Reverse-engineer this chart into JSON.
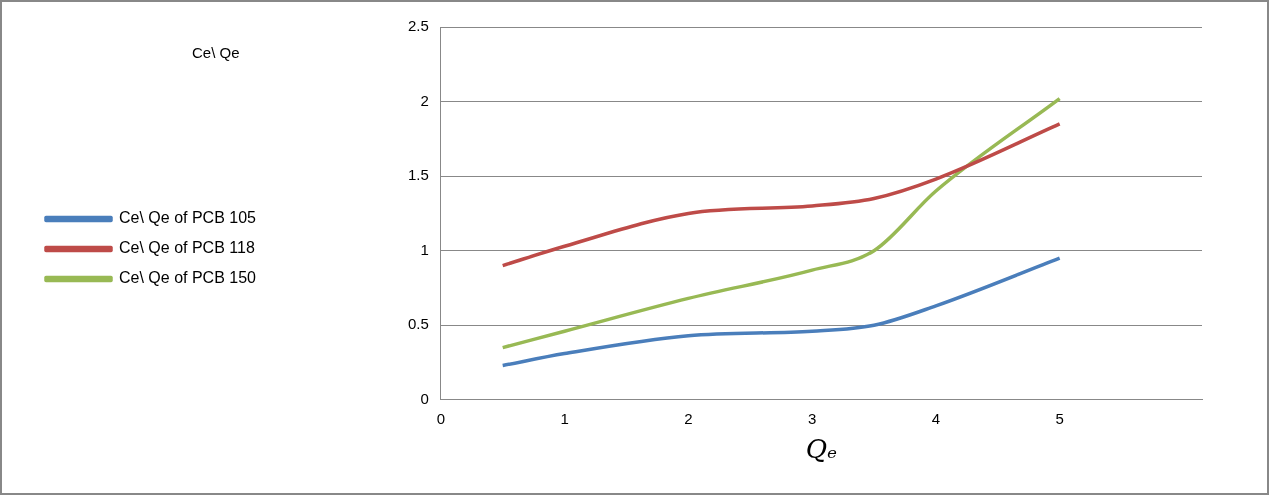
{
  "chart_data": {
    "type": "line",
    "title": "Ce\\ Qe",
    "xlabel": "Qₑ",
    "x": [
      0.5,
      1,
      2,
      3,
      3.5,
      4,
      5
    ],
    "series": [
      {
        "name": "Ce\\ Qe of PCB 105",
        "color": "#4a7ebb",
        "values": [
          0.23,
          0.31,
          0.43,
          0.46,
          0.5,
          0.63,
          0.95
        ]
      },
      {
        "name": "Ce\\ Qe of PCB 118",
        "color": "#be4b48",
        "values": [
          0.9,
          1.03,
          1.25,
          1.3,
          1.35,
          1.48,
          1.85
        ]
      },
      {
        "name": "Ce\\ Qe of PCB 150",
        "color": "#98b954",
        "values": [
          0.35,
          0.46,
          0.68,
          0.87,
          1.0,
          1.4,
          2.02
        ]
      }
    ],
    "xlim": [
      0,
      6.15
    ],
    "xticks": [
      0,
      1,
      2,
      3,
      4,
      5
    ],
    "ylim": [
      0,
      2.5
    ],
    "yticks": [
      0,
      0.5,
      1,
      1.5,
      2,
      2.5
    ],
    "grid": "y",
    "legend": "left",
    "marker": "none"
  }
}
